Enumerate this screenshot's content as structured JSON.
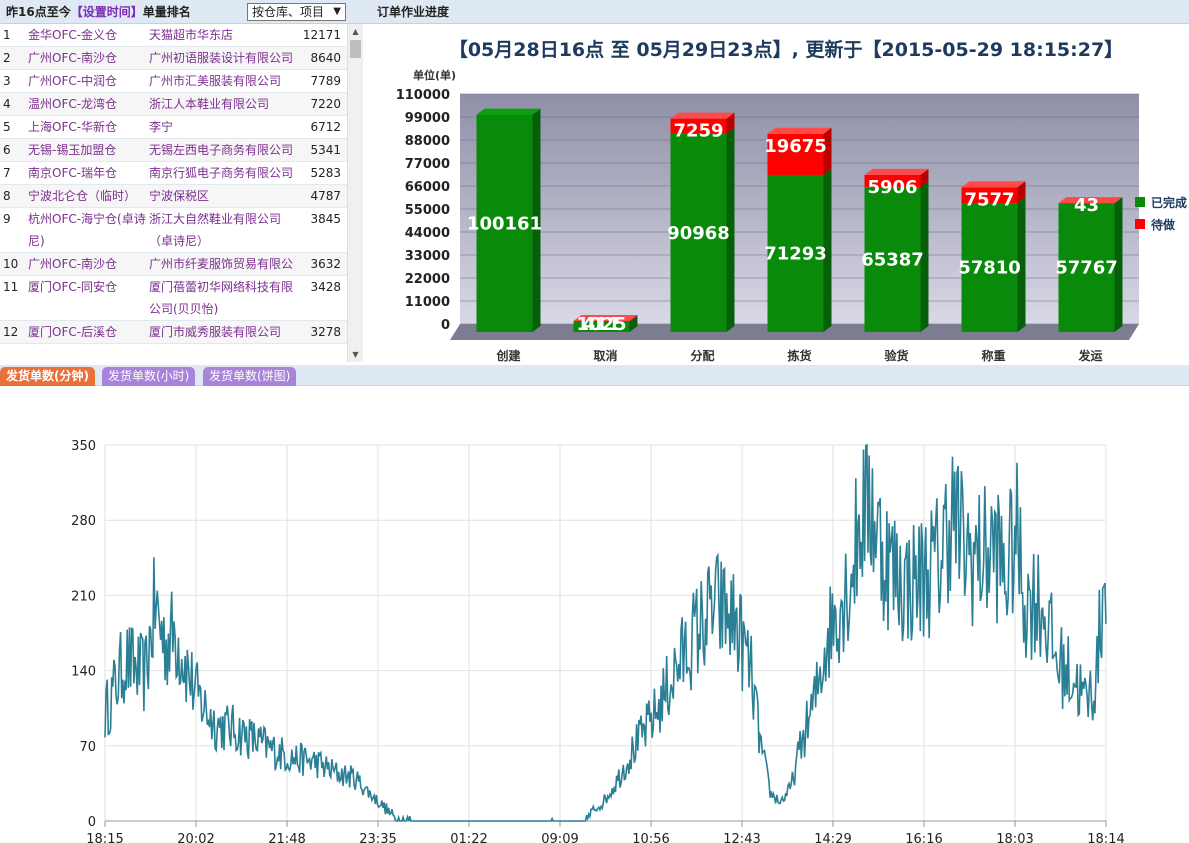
{
  "left_panel": {
    "title_prefix": "昨16点至今",
    "title_link": "【设置时间】",
    "title_suffix": "单量排名",
    "select_value": "按仓库、项目",
    "rows": [
      {
        "rank": "1",
        "warehouse": "金华OFC-金义仓",
        "client": "天猫超市华东店",
        "value": "12171"
      },
      {
        "rank": "2",
        "warehouse": "广州OFC-南沙仓",
        "client": "广州初语服装设计有限公司",
        "value": "8640"
      },
      {
        "rank": "3",
        "warehouse": "广州OFC-中润仓",
        "client": "广州市汇美服装有限公司",
        "value": "7789"
      },
      {
        "rank": "4",
        "warehouse": "温州OFC-龙湾仓",
        "client": "浙江人本鞋业有限公司",
        "value": "7220"
      },
      {
        "rank": "5",
        "warehouse": "上海OFC-华新仓",
        "client": "李宁",
        "value": "6712"
      },
      {
        "rank": "6",
        "warehouse": "无锡-锡玉加盟仓",
        "client": "无锡左西电子商务有限公司",
        "value": "5341"
      },
      {
        "rank": "7",
        "warehouse": "南京OFC-瑞年仓",
        "client": "南京行狐电子商务有限公司",
        "value": "5283"
      },
      {
        "rank": "8",
        "warehouse": "宁波北仑仓（临时）",
        "client": "宁波保税区",
        "value": "4787"
      },
      {
        "rank": "9",
        "warehouse": "杭州OFC-海宁仓(卓诗尼)",
        "client": "浙江大自然鞋业有限公司（卓诗尼）",
        "value": "3845"
      },
      {
        "rank": "10",
        "warehouse": "广州OFC-南沙仓",
        "client": "广州市纤麦服饰贸易有限公司",
        "value": "3632"
      },
      {
        "rank": "11",
        "warehouse": "厦门OFC-同安仓",
        "client": "厦门蓓蕾初华网络科技有限公司(贝贝怡)",
        "value": "3428"
      },
      {
        "rank": "12",
        "warehouse": "厦门OFC-后溪仓",
        "client": "厦门市威秀服装有限公司",
        "value": "3278"
      }
    ]
  },
  "right_panel": {
    "title": "订单作业进度"
  },
  "bar_chart": {
    "title": "【05月28日16点 至 05月29日23点】, 更新于【2015-05-29 18:15:27】",
    "unit_label": "单位(单)",
    "colors": {
      "done": "#0a8a0a",
      "pending": "#ff0000"
    },
    "chart_data": {
      "type": "bar",
      "categories": [
        "创建",
        "取消",
        "分配",
        "拣货",
        "验货",
        "称重",
        "发运"
      ],
      "series": [
        {
          "name": "已完成",
          "values": [
            100161,
            1025,
            90968,
            71293,
            65387,
            57810,
            57767
          ]
        },
        {
          "name": "待做",
          "values": [
            0,
            411,
            7259,
            19675,
            5906,
            7577,
            43
          ]
        }
      ],
      "ylim": [
        0,
        110000
      ],
      "yticks": [
        "110000",
        "99000",
        "88000",
        "77000",
        "66000",
        "55000",
        "44000",
        "33000",
        "22000",
        "11000",
        "0"
      ],
      "stacked": true,
      "legend": "right"
    }
  },
  "tabs": [
    {
      "label": "发货单数(分钟)",
      "active": true
    },
    {
      "label": "发货单数(小时)",
      "active": false
    },
    {
      "label": "发货单数(饼图)",
      "active": false
    }
  ],
  "line_chart": {
    "color": "#2a7f95",
    "chart_data": {
      "type": "line",
      "xlabels": [
        "18:15",
        "20:02",
        "21:48",
        "23:35",
        "01:22",
        "09:09",
        "10:56",
        "12:43",
        "14:29",
        "16:16",
        "18:03",
        "18:14"
      ],
      "yticks": [
        "350",
        "280",
        "210",
        "140",
        "70",
        "0"
      ],
      "ylim": [
        0,
        350
      ],
      "keypoints": [
        [
          0,
          100
        ],
        [
          0.02,
          150
        ],
        [
          0.04,
          135
        ],
        [
          0.05,
          200
        ],
        [
          0.06,
          165
        ],
        [
          0.07,
          175
        ],
        [
          0.09,
          120
        ],
        [
          0.11,
          90
        ],
        [
          0.13,
          85
        ],
        [
          0.15,
          75
        ],
        [
          0.17,
          65
        ],
        [
          0.19,
          58
        ],
        [
          0.21,
          55
        ],
        [
          0.23,
          45
        ],
        [
          0.25,
          40
        ],
        [
          0.265,
          25
        ],
        [
          0.28,
          12
        ],
        [
          0.29,
          2
        ],
        [
          0.31,
          0
        ],
        [
          0.48,
          0
        ],
        [
          0.49,
          12
        ],
        [
          0.5,
          20
        ],
        [
          0.51,
          35
        ],
        [
          0.53,
          70
        ],
        [
          0.55,
          100
        ],
        [
          0.57,
          140
        ],
        [
          0.59,
          175
        ],
        [
          0.61,
          200
        ],
        [
          0.63,
          185
        ],
        [
          0.645,
          140
        ],
        [
          0.655,
          70
        ],
        [
          0.665,
          25
        ],
        [
          0.675,
          18
        ],
        [
          0.685,
          30
        ],
        [
          0.695,
          70
        ],
        [
          0.71,
          115
        ],
        [
          0.72,
          165
        ],
        [
          0.73,
          195
        ],
        [
          0.745,
          225
        ],
        [
          0.755,
          285
        ],
        [
          0.765,
          300
        ],
        [
          0.775,
          255
        ],
        [
          0.79,
          230
        ],
        [
          0.8,
          220
        ],
        [
          0.82,
          230
        ],
        [
          0.835,
          245
        ],
        [
          0.845,
          290
        ],
        [
          0.86,
          250
        ],
        [
          0.875,
          245
        ],
        [
          0.89,
          255
        ],
        [
          0.9,
          225
        ],
        [
          0.91,
          270
        ],
        [
          0.92,
          200
        ],
        [
          0.93,
          210
        ],
        [
          0.94,
          190
        ],
        [
          0.95,
          150
        ],
        [
          0.96,
          140
        ],
        [
          0.97,
          130
        ],
        [
          0.98,
          110
        ],
        [
          0.99,
          130
        ],
        [
          1.0,
          250
        ]
      ]
    }
  }
}
